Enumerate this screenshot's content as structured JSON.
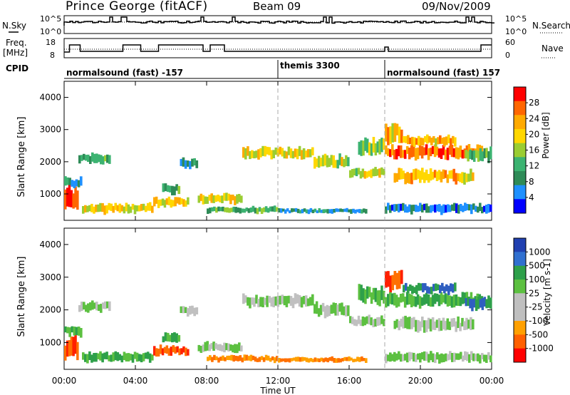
{
  "header": {
    "station": "Prince George (fitACF)",
    "beam": "Beam 09",
    "date": "09/Nov/2009"
  },
  "strip_labels": {
    "nsky": "N.Sky",
    "nsky_ticks": [
      "10^5",
      "10^0"
    ],
    "nsearch": "N.Search",
    "nsearch_ticks": [
      "10^5",
      "10^0"
    ],
    "freq_line1": "Freq.",
    "freq_line2": "[MHz]",
    "freq_ticks": [
      "18",
      "8"
    ],
    "nave": "Nave",
    "nave_ticks": [
      "60",
      "0"
    ],
    "cpid": "CPID"
  },
  "cpid_segments": [
    {
      "label": "normalsound (fast) -157",
      "start_hour": 0
    },
    {
      "label": "themis 3300",
      "start_hour": 12
    },
    {
      "label": "normalsound (fast) 157",
      "start_hour": 18
    }
  ],
  "chart_data": {
    "type": "heatmap",
    "x_axis": {
      "label": "Time UT",
      "range_hours": [
        0,
        24
      ],
      "tick_labels": [
        "00:00",
        "04:00",
        "08:00",
        "12:00",
        "16:00",
        "20:00",
        "00:00"
      ]
    },
    "dashed_markers_hours": [
      12,
      18
    ],
    "panels": [
      {
        "name": "power",
        "ylabel": "Slant Range [km]",
        "ylim": [
          180,
          4500
        ],
        "yticks": [
          1000,
          2000,
          3000,
          4000
        ],
        "colorbar_label": "Power [dB]",
        "colorbar_ticks": [
          "28",
          "24",
          "20",
          "16",
          "12",
          "8",
          "4"
        ],
        "colorbar_colors": [
          "#ff0000",
          "#ff6600",
          "#ffaa00",
          "#ffd700",
          "#9acd32",
          "#3cb371",
          "#2e8b57",
          "#1e90ff",
          "#0000ff"
        ]
      },
      {
        "name": "velocity",
        "ylabel": "Slant Range [km]",
        "ylim": [
          180,
          4500
        ],
        "yticks": [
          1000,
          2000,
          3000,
          4000
        ],
        "colorbar_label": "Velocity [m s-1]",
        "colorbar_ticks": [
          "1000",
          "500",
          "100",
          "25",
          "-25",
          "-100",
          "-500",
          "-1000"
        ],
        "colorbar_colors": [
          "#2040b0",
          "#3070d0",
          "#2ea04a",
          "#5cc040",
          "#bfbfbf",
          "#bfbfbf",
          "#ffa000",
          "#ff6000",
          "#ff0000"
        ]
      }
    ],
    "echo_regions": [
      {
        "t0": 0.0,
        "t1": 0.8,
        "r0": 450,
        "r1": 1200,
        "power": 26,
        "velocity": -500
      },
      {
        "t0": 0.0,
        "t1": 1.0,
        "r0": 1200,
        "r1": 1500,
        "power": 8,
        "velocity": 100
      },
      {
        "t0": 1.0,
        "t1": 5.0,
        "r0": 400,
        "r1": 700,
        "power": 18,
        "velocity": 100
      },
      {
        "t0": 0.8,
        "t1": 2.6,
        "r0": 1950,
        "r1": 2250,
        "power": 10,
        "velocity": 25
      },
      {
        "t0": 5.0,
        "t1": 7.0,
        "r0": 600,
        "r1": 900,
        "power": 20,
        "velocity": -500
      },
      {
        "t0": 5.5,
        "t1": 6.5,
        "r0": 1000,
        "r1": 1300,
        "power": 10,
        "velocity": 100
      },
      {
        "t0": 6.5,
        "t1": 7.5,
        "r0": 1800,
        "r1": 2100,
        "power": 8,
        "velocity": 25
      },
      {
        "t0": 7.5,
        "t1": 10.0,
        "r0": 700,
        "r1": 1000,
        "power": 18,
        "velocity": 25
      },
      {
        "t0": 8.0,
        "t1": 12.0,
        "r0": 400,
        "r1": 600,
        "power": 12,
        "velocity": -100
      },
      {
        "t0": 12.0,
        "t1": 17.0,
        "r0": 400,
        "r1": 550,
        "power": 8,
        "velocity": -100
      },
      {
        "t0": 10.0,
        "t1": 14.0,
        "r0": 2100,
        "r1": 2450,
        "power": 18,
        "velocity": 25
      },
      {
        "t0": 14.0,
        "t1": 16.0,
        "r0": 1800,
        "r1": 2200,
        "power": 16,
        "velocity": 25
      },
      {
        "t0": 16.0,
        "t1": 18.0,
        "r0": 1500,
        "r1": 1800,
        "power": 16,
        "velocity": 25
      },
      {
        "t0": 16.5,
        "t1": 18.0,
        "r0": 2200,
        "r1": 2700,
        "power": 14,
        "velocity": 100
      },
      {
        "t0": 18.0,
        "t1": 19.0,
        "r0": 2600,
        "r1": 3200,
        "power": 20,
        "velocity": -500
      },
      {
        "t0": 18.0,
        "t1": 23.5,
        "r0": 2100,
        "r1": 2500,
        "power": 24,
        "velocity": 100
      },
      {
        "t0": 19.0,
        "t1": 22.0,
        "r0": 2500,
        "r1": 2800,
        "power": 20,
        "velocity": 500
      },
      {
        "t0": 18.5,
        "t1": 23.0,
        "r0": 1350,
        "r1": 1750,
        "power": 20,
        "velocity": 25
      },
      {
        "t0": 22.5,
        "t1": 24.0,
        "r0": 2000,
        "r1": 2400,
        "power": 12,
        "velocity": 500
      },
      {
        "t0": 18.0,
        "t1": 24.0,
        "r0": 400,
        "r1": 700,
        "power": 6,
        "velocity": 25
      }
    ]
  }
}
